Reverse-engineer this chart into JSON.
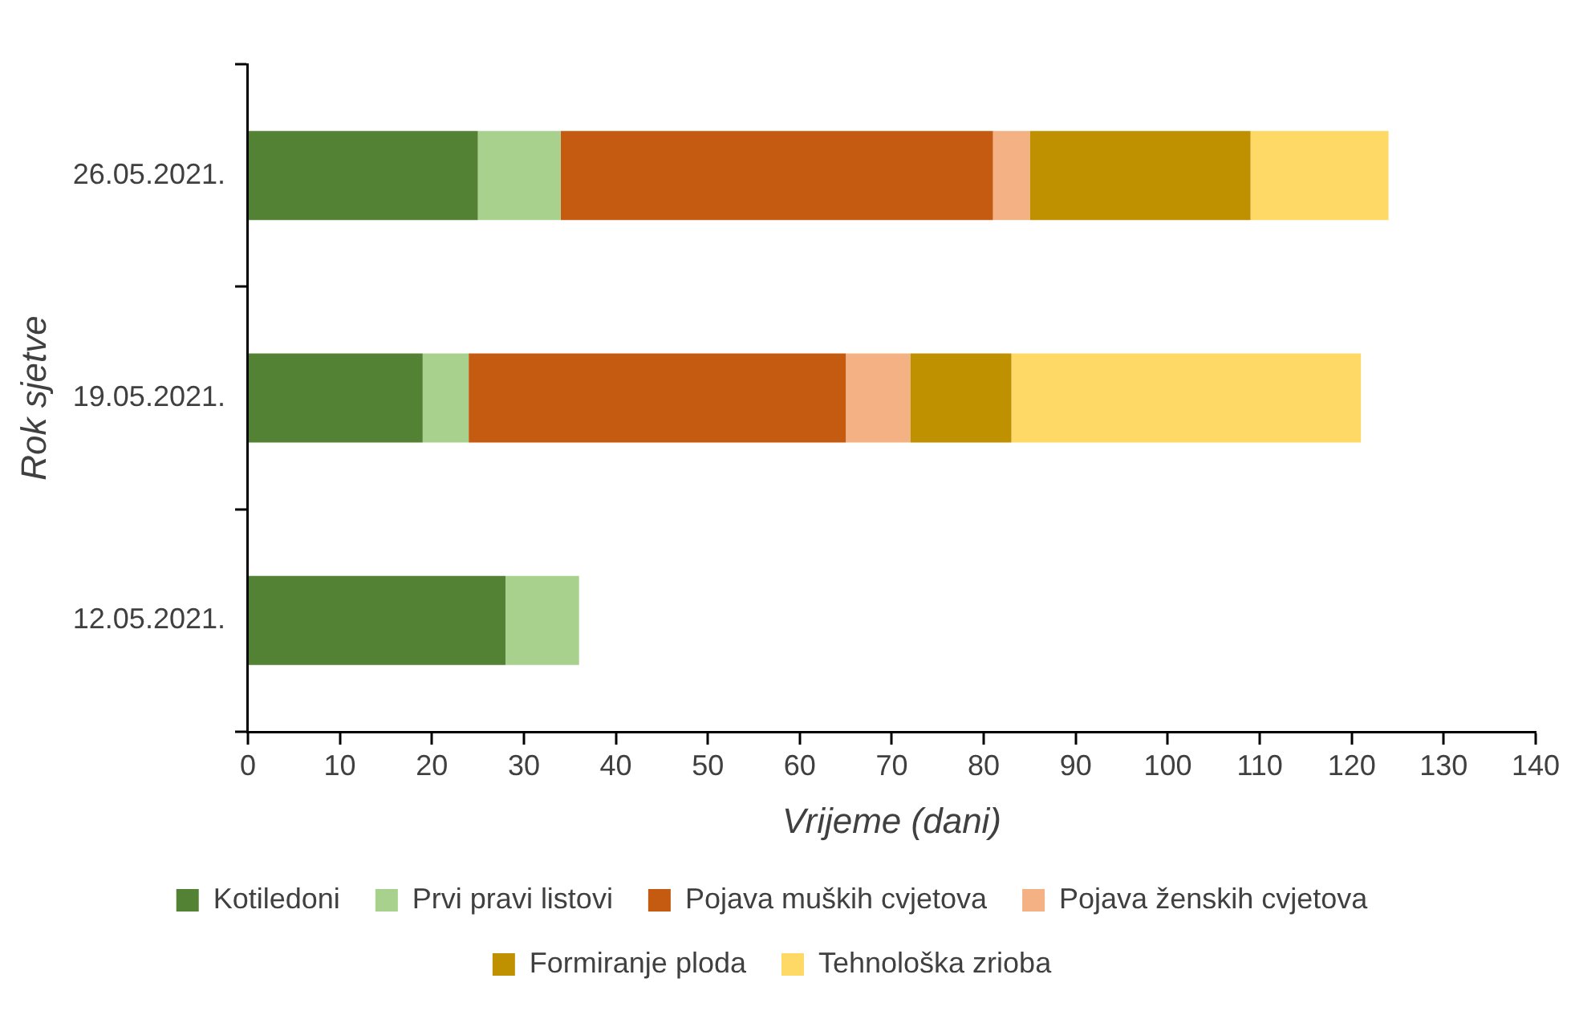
{
  "chart_data": {
    "type": "bar",
    "orientation": "horizontal",
    "stacked": true,
    "xlabel": "Vrijeme (dani)",
    "ylabel": "Rok sjetve",
    "categories": [
      "26.05.2021.",
      "19.05.2021.",
      "12.05.2021."
    ],
    "series": [
      {
        "name": "Kotiledoni",
        "color": "#548235",
        "values": [
          25,
          19,
          28
        ]
      },
      {
        "name": "Prvi pravi listovi",
        "color": "#a9d18e",
        "values": [
          9,
          5,
          8
        ]
      },
      {
        "name": "Pojava muških cvjetova",
        "color": "#c55a11",
        "values": [
          47,
          41,
          null
        ]
      },
      {
        "name": "Pojava ženskih cvjetova",
        "color": "#f4b183",
        "values": [
          4,
          7,
          null
        ]
      },
      {
        "name": "Formiranje ploda",
        "color": "#bf9000",
        "values": [
          24,
          11,
          null
        ]
      },
      {
        "name": "Tehnološka zrioba",
        "color": "#ffd966",
        "values": [
          15,
          38,
          null
        ]
      }
    ],
    "xlim": [
      0,
      140
    ],
    "xticks": [
      0,
      10,
      20,
      30,
      40,
      50,
      60,
      70,
      80,
      90,
      100,
      110,
      120,
      130,
      140
    ],
    "grid": false,
    "legend": "bottom"
  }
}
